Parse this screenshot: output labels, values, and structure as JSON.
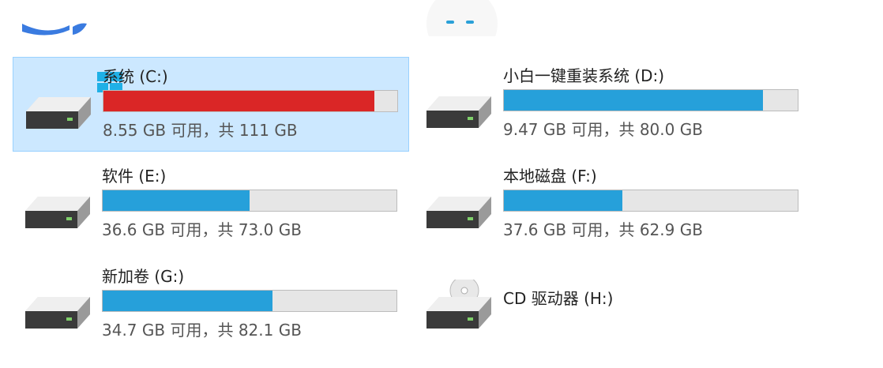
{
  "colors": {
    "normal_fill": "#26a0da",
    "full_fill": "#da2626",
    "selection": "#cce8ff"
  },
  "drives": [
    {
      "name": "系统 (C:)",
      "free": "8.55 GB 可用，共 111 GB",
      "used_fraction": 0.923,
      "icon": "windows-drive-icon",
      "selected": true,
      "full": true
    },
    {
      "name": "小白一键重装系统 (D:)",
      "free": "9.47 GB 可用，共 80.0 GB",
      "used_fraction": 0.882,
      "icon": "hard-drive-icon"
    },
    {
      "name": "软件 (E:)",
      "free": "36.6 GB 可用，共 73.0 GB",
      "used_fraction": 0.499,
      "icon": "hard-drive-icon"
    },
    {
      "name": "本地磁盘 (F:)",
      "free": "37.6 GB 可用，共 62.9 GB",
      "used_fraction": 0.402,
      "icon": "hard-drive-icon"
    },
    {
      "name": "新加卷 (G:)",
      "free": "34.7 GB 可用，共 82.1 GB",
      "used_fraction": 0.577,
      "icon": "hard-drive-icon"
    },
    {
      "name": "CD 驱动器 (H:)",
      "icon": "cd-drive-icon"
    }
  ]
}
